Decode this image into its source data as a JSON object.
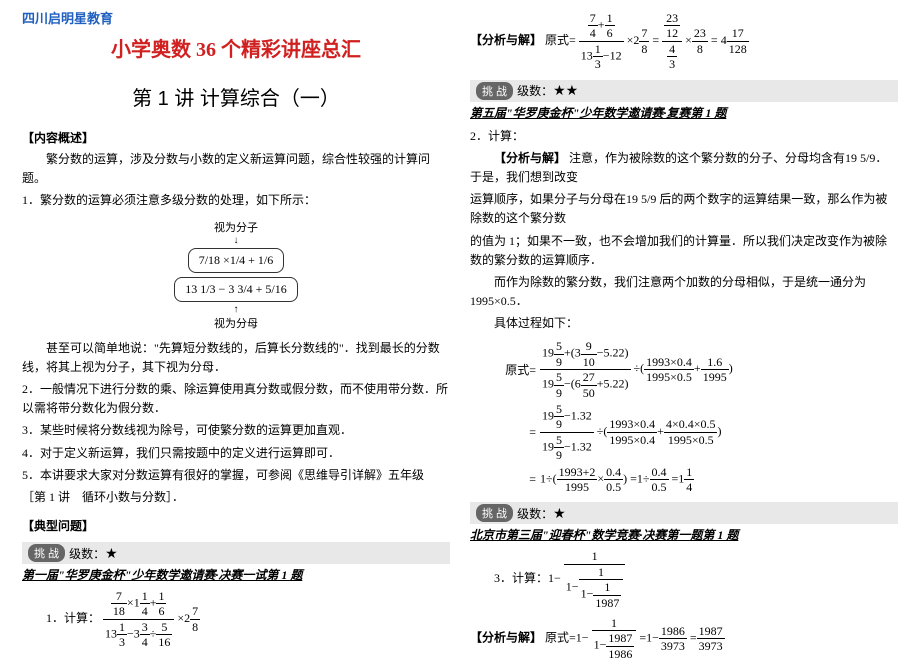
{
  "brand": "四川启明星教育",
  "title1": "小学奥数 36 个精彩讲座总汇",
  "title2": "第 1 讲  计算综合（一）",
  "sec_content": "【内容概述】",
  "p_intro": "繁分数的运算，涉及分数与小数的定义新运算问题，综合性较强的计算问题。",
  "p1": "1．繁分数的运算必须注意多级分数的处理，如下所示：",
  "diag_top_label": "视为分子",
  "diag_box1": "7/18 ×1/4 + 1/6",
  "diag_box2": "13 1/3 − 3 3/4 + 5/16",
  "diag_bot_label": "视为分母",
  "p_after_diag": "甚至可以简单地说：\"先算短分数线的，后算长分数线的\"．找到最长的分数线，将其上视为分子，其下视为分母．",
  "p2": "2．一般情况下进行分数的乘、除运算使用真分数或假分数，而不使用带分数．所以需将带分数化为假分数．",
  "p3": "3．某些时候将分数线视为除号，可使繁分数的运算更加直观．",
  "p4": "4．对于定义新运算，我们只需按题中的定义进行运算即可．",
  "p5": "5．本讲要求大家对分数运算有很好的掌握，可参阅《思维导引详解》五年级",
  "p5b": "［第 1 讲　循环小数与分数］．",
  "sec_example": "【典型问题】",
  "challenge_label": "级数：",
  "challenge_badge": "挑 战",
  "q1_src": "第一届\"华罗庚金杯\"少年数学邀请赛·决赛一试第 1 题",
  "q1_label": "1．计算：",
  "analysis_label": "【分析与解】",
  "q2_src": "第五届\"华罗庚金杯\"少年数学邀请赛·复赛第 1 题",
  "q2_label": "2．计算：",
  "p_r1": "注意，作为被除数的这个繁分数的分子、分母均含有19 5/9．于是，我们想到改变",
  "p_r2": "运算顺序，如果分子与分母在19 5/9 后的两个数字的运算结果一致，那么作为被除数的这个繁分数",
  "p_r3": "的值为 1；如果不一致，也不会增加我们的计算量．所以我们决定改变作为被除数的繁分数的运算顺序．",
  "p_r4": "而作为除数的繁分数，我们注意两个加数的分母相似，于是统一通分为 1995×0.5．",
  "p_r5": "具体过程如下：",
  "q3_src": "北京市第三届\"迎春杯\"数学竞赛·决赛第一题第 1 题",
  "q3_label": "3．计算：1−",
  "colors": {
    "brand": "#2060c0",
    "title": "#d02020",
    "text": "#000000",
    "bg": "#ffffff",
    "challenge_bg": "#e8e8e8",
    "badge_bg": "#666666"
  }
}
